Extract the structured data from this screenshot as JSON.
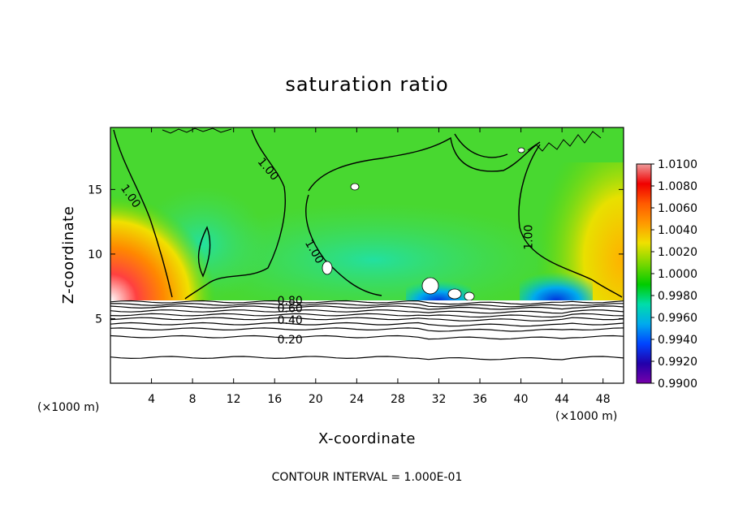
{
  "chart_data": {
    "type": "heatmap",
    "title": "saturation ratio",
    "xlabel": "X-coordinate",
    "ylabel": "Z-coordinate",
    "x_unit_label": "(×1000 m)",
    "xlim": [
      0,
      50
    ],
    "ylim": [
      0,
      19.8
    ],
    "x_ticks": [
      4,
      8,
      12,
      16,
      20,
      24,
      28,
      32,
      36,
      40,
      44,
      48
    ],
    "y_ticks": [
      5,
      10,
      15
    ],
    "footer": "CONTOUR INTERVAL = 1.000E-01",
    "colorbar": {
      "range": [
        0.99,
        1.01
      ],
      "ticks": [
        "1.0100",
        "1.0080",
        "1.0060",
        "1.0040",
        "1.0020",
        "1.0000",
        "0.9980",
        "0.9960",
        "0.9940",
        "0.9920",
        "0.9900"
      ],
      "colors": [
        "#ee9a9a",
        "#f00000",
        "#ff5a00",
        "#ff9900",
        "#f0e000",
        "#80d800",
        "#00cc00",
        "#00ddaa",
        "#00aaee",
        "#0044ff",
        "#2200aa",
        "#7700aa"
      ]
    },
    "contour_labels": [
      {
        "text": "1.00",
        "x": 2.0,
        "z": 14.5,
        "angle": 55
      },
      {
        "text": "1.00",
        "x": 15.4,
        "z": 16.6,
        "angle": 50
      },
      {
        "text": "1.00",
        "x": 19.9,
        "z": 10.2,
        "angle": 60
      },
      {
        "text": "1.00",
        "x": 40.7,
        "z": 11.3,
        "angle": -90
      },
      {
        "text": "0.80",
        "x": 17.5,
        "z": 6.4,
        "angle": 0
      },
      {
        "text": "0.60",
        "x": 17.5,
        "z": 5.8,
        "angle": 0
      },
      {
        "text": "0.40",
        "x": 17.5,
        "z": 4.9,
        "angle": 0
      },
      {
        "text": "0.20",
        "x": 17.5,
        "z": 3.4,
        "angle": 0
      }
    ],
    "cloud_top_z": 6.5,
    "lower_contour_z": [
      6.3,
      6.1,
      5.9,
      5.6,
      5.3,
      5.0,
      4.6,
      4.2,
      3.6,
      2.0
    ]
  }
}
